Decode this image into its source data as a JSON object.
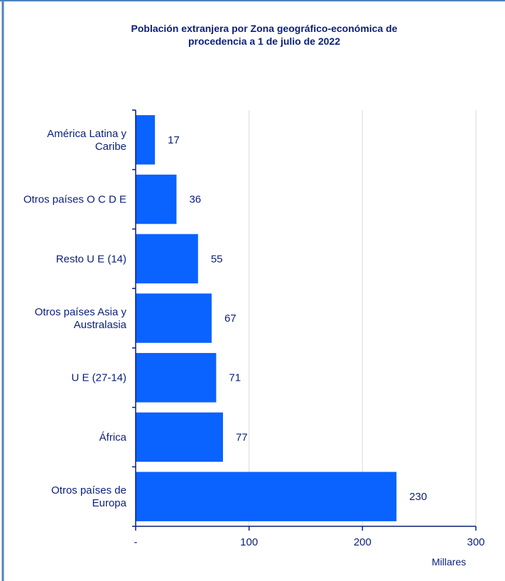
{
  "chart_data": {
    "type": "bar",
    "orientation": "horizontal",
    "title_lines": [
      "Población extranjera por Zona geográfico-económica de",
      "procedencia a 1 de julio de 2022"
    ],
    "categories": [
      [
        "América Latina y",
        "Caribe"
      ],
      [
        "Otros países O C D E"
      ],
      [
        "Resto U E (14)"
      ],
      [
        "Otros países Asia y",
        "Australasia"
      ],
      [
        "U E (27-14)"
      ],
      [
        "África"
      ],
      [
        "Otros países de",
        "Europa"
      ]
    ],
    "values": [
      17,
      36,
      55,
      67,
      71,
      77,
      230
    ],
    "value_labels": [
      "17",
      "36",
      "55",
      "67",
      "71",
      "77",
      "230"
    ],
    "xlim": [
      0,
      300
    ],
    "x_ticks": [
      0,
      100,
      200,
      300
    ],
    "x_tick_labels": [
      "-",
      "100",
      "200",
      "300"
    ],
    "xlabel": "Millares",
    "grid": "vertical",
    "legend": "none",
    "colors": {
      "bar": "#0a62ff",
      "text": "#0a1f7a",
      "axis": "#0a1f7a",
      "grid": "#d9d9d9",
      "frame": "#4f81bd"
    }
  }
}
